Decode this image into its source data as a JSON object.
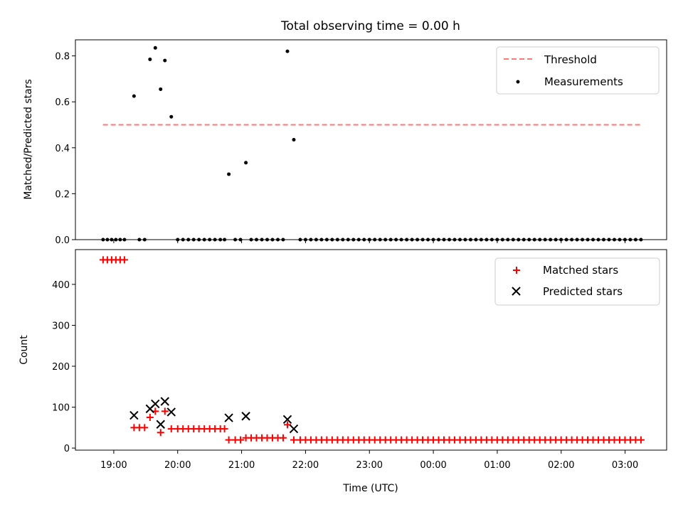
{
  "chart_data": [
    {
      "type": "scatter",
      "panel": "top",
      "title": "Total observing time = 0.00 h",
      "ylabel": "Matched/Predicted stars",
      "ylim": [
        0,
        0.87
      ],
      "yticks": [
        "0.0",
        "0.2",
        "0.4",
        "0.6",
        "0.8"
      ],
      "legend": "top-right",
      "threshold": {
        "name": "Threshold",
        "value": 0.5,
        "x_start": 18.83,
        "x_end": 27.27,
        "color": "#ff7777"
      },
      "series": [
        {
          "name": "Measurements",
          "color": "#000000",
          "points": [
            [
              19.317,
              0.625
            ],
            [
              19.567,
              0.785
            ],
            [
              19.65,
              0.835
            ],
            [
              19.733,
              0.655
            ],
            [
              19.8,
              0.78
            ],
            [
              19.9,
              0.535
            ],
            [
              20.8,
              0.285
            ],
            [
              21.067,
              0.335
            ],
            [
              21.717,
              0.82
            ],
            [
              21.817,
              0.435
            ]
          ],
          "zero_x": [
            18.833,
            18.9,
            18.967,
            19.033,
            19.1,
            19.167,
            19.4,
            19.483,
            20.0,
            20.083,
            20.167,
            20.25,
            20.333,
            20.417,
            20.5,
            20.583,
            20.667,
            20.733,
            20.9,
            20.983,
            21.15,
            21.233,
            21.317,
            21.4,
            21.483,
            21.567,
            21.65
          ],
          "zero_x_start": 21.917,
          "zero_x_end": 27.25,
          "zero_x_step": 0.0833
        }
      ]
    },
    {
      "type": "scatter",
      "panel": "bottom",
      "xlabel": "Time (UTC)",
      "ylabel": "Count",
      "ylim": [
        -5,
        485
      ],
      "yticks": [
        "0",
        "100",
        "200",
        "300",
        "400"
      ],
      "xlim": [
        18.4,
        27.65
      ],
      "xticks": [
        "19:00",
        "20:00",
        "21:00",
        "22:00",
        "23:00",
        "00:00",
        "01:00",
        "02:00",
        "03:00"
      ],
      "legend": "top-right",
      "series": [
        {
          "name": "Matched stars",
          "color": "#ff0000",
          "points": [
            [
              18.833,
              460
            ],
            [
              18.9,
              460
            ],
            [
              18.967,
              460
            ],
            [
              19.033,
              460
            ],
            [
              19.1,
              460
            ],
            [
              19.167,
              460
            ],
            [
              19.317,
              50
            ],
            [
              19.4,
              50
            ],
            [
              19.483,
              50
            ],
            [
              19.567,
              75
            ],
            [
              19.65,
              90
            ],
            [
              19.733,
              38
            ],
            [
              19.8,
              90
            ],
            [
              19.9,
              47
            ],
            [
              20.0,
              47
            ],
            [
              20.083,
              47
            ],
            [
              20.167,
              47
            ],
            [
              20.25,
              47
            ],
            [
              20.333,
              47
            ],
            [
              20.417,
              47
            ],
            [
              20.5,
              47
            ],
            [
              20.583,
              47
            ],
            [
              20.667,
              47
            ],
            [
              20.733,
              47
            ],
            [
              20.8,
              20
            ],
            [
              20.9,
              20
            ],
            [
              20.983,
              20
            ],
            [
              21.067,
              25
            ],
            [
              21.15,
              25
            ],
            [
              21.233,
              25
            ],
            [
              21.317,
              25
            ],
            [
              21.4,
              25
            ],
            [
              21.483,
              25
            ],
            [
              21.567,
              25
            ],
            [
              21.65,
              25
            ],
            [
              21.717,
              57
            ],
            [
              21.817,
              20
            ]
          ],
          "trailing_value": 20,
          "trailing_x_start": 21.917,
          "trailing_x_end": 27.25,
          "trailing_x_step": 0.0833
        },
        {
          "name": "Predicted stars",
          "color": "#000000",
          "points": [
            [
              19.317,
              80
            ],
            [
              19.567,
              96
            ],
            [
              19.65,
              108
            ],
            [
              19.733,
              58
            ],
            [
              19.8,
              114
            ],
            [
              19.9,
              88
            ],
            [
              20.8,
              74
            ],
            [
              21.067,
              78
            ],
            [
              21.717,
              70
            ],
            [
              21.817,
              47
            ]
          ]
        }
      ]
    }
  ]
}
